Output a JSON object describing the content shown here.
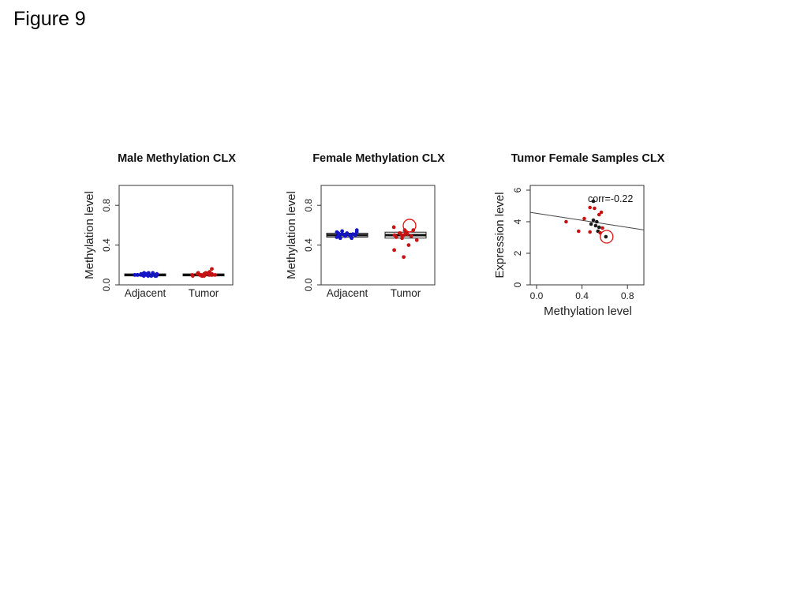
{
  "figure_label": "Figure 9",
  "colors": {
    "adjacent": "#1515c8",
    "tumor": "#c41414",
    "dark": "#1a1a1a",
    "circle": "#e01010"
  },
  "chart_data": [
    {
      "type": "box",
      "title": "Male Methylation CLX",
      "ylabel": "Methylation level",
      "xlabel": "",
      "ylim": [
        0,
        1.0
      ],
      "yticks": [
        0.0,
        0.4,
        0.8
      ],
      "categories": [
        "Adjacent",
        "Tumor"
      ],
      "series": [
        {
          "category": "Adjacent",
          "median": 0.1,
          "q1": 0.09,
          "q3": 0.11,
          "points": [
            0.09,
            0.1,
            0.11,
            0.1,
            0.12,
            0.09,
            0.1,
            0.11,
            0.1,
            0.09,
            0.12,
            0.1,
            0.11,
            0.1,
            0.09,
            0.1,
            0.11,
            0.12,
            0.1,
            0.09
          ]
        },
        {
          "category": "Tumor",
          "median": 0.1,
          "q1": 0.09,
          "q3": 0.11,
          "points": [
            0.1,
            0.11,
            0.09,
            0.12,
            0.1,
            0.13,
            0.1,
            0.11,
            0.09,
            0.1,
            0.12,
            0.11,
            0.1,
            0.16,
            0.1,
            0.09,
            0.11,
            0.1,
            0.12,
            0.1,
            0.11,
            0.09
          ]
        }
      ]
    },
    {
      "type": "box",
      "title": "Female Methylation CLX",
      "ylabel": "Methylation level",
      "xlabel": "",
      "ylim": [
        0,
        1.0
      ],
      "yticks": [
        0.0,
        0.4,
        0.8
      ],
      "categories": [
        "Adjacent",
        "Tumor"
      ],
      "series": [
        {
          "category": "Adjacent",
          "median": 0.5,
          "q1": 0.48,
          "q3": 0.52,
          "points": [
            0.49,
            0.51,
            0.53,
            0.5,
            0.55,
            0.47,
            0.52,
            0.5,
            0.48,
            0.54,
            0.51,
            0.49,
            0.5,
            0.53,
            0.47,
            0.52,
            0.5,
            0.51
          ]
        },
        {
          "category": "Tumor",
          "median": 0.5,
          "q1": 0.47,
          "q3": 0.53,
          "points": [
            0.55,
            0.53,
            0.5,
            0.48,
            0.52,
            0.45,
            0.5,
            0.58,
            0.53,
            0.51,
            0.49,
            0.4,
            0.35,
            0.28,
            0.47,
            0.52,
            0.55,
            0.5
          ],
          "highlight": 0.58
        }
      ]
    },
    {
      "type": "scatter",
      "title": "Tumor Female Samples CLX",
      "ylabel": "Expression level",
      "xlabel": "Methylation level",
      "xlim": [
        0,
        1.0
      ],
      "ylim": [
        0,
        6.3
      ],
      "xticks": [
        0.0,
        0.4,
        0.8
      ],
      "yticks": [
        0,
        2,
        4,
        6
      ],
      "annotation": "corr=-0.22",
      "trend": {
        "x0": 0.0,
        "y0": 4.55,
        "x1": 1.0,
        "y1": 3.4
      },
      "points": [
        {
          "x": 0.5,
          "y": 5.3,
          "group": "dark"
        },
        {
          "x": 0.47,
          "y": 4.9,
          "group": "tumor"
        },
        {
          "x": 0.51,
          "y": 4.85,
          "group": "tumor"
        },
        {
          "x": 0.57,
          "y": 4.6,
          "group": "tumor"
        },
        {
          "x": 0.55,
          "y": 4.45,
          "group": "tumor"
        },
        {
          "x": 0.42,
          "y": 4.2,
          "group": "tumor"
        },
        {
          "x": 0.5,
          "y": 4.1,
          "group": "dark"
        },
        {
          "x": 0.53,
          "y": 4.0,
          "group": "dark"
        },
        {
          "x": 0.26,
          "y": 4.0,
          "group": "tumor"
        },
        {
          "x": 0.48,
          "y": 3.85,
          "group": "dark"
        },
        {
          "x": 0.52,
          "y": 3.75,
          "group": "dark"
        },
        {
          "x": 0.55,
          "y": 3.65,
          "group": "dark"
        },
        {
          "x": 0.58,
          "y": 3.6,
          "group": "tumor"
        },
        {
          "x": 0.37,
          "y": 3.4,
          "group": "tumor"
        },
        {
          "x": 0.47,
          "y": 3.35,
          "group": "tumor"
        },
        {
          "x": 0.54,
          "y": 3.4,
          "group": "dark"
        },
        {
          "x": 0.56,
          "y": 3.3,
          "group": "tumor"
        },
        {
          "x": 0.61,
          "y": 3.05,
          "group": "dark",
          "highlight": true
        }
      ]
    }
  ]
}
